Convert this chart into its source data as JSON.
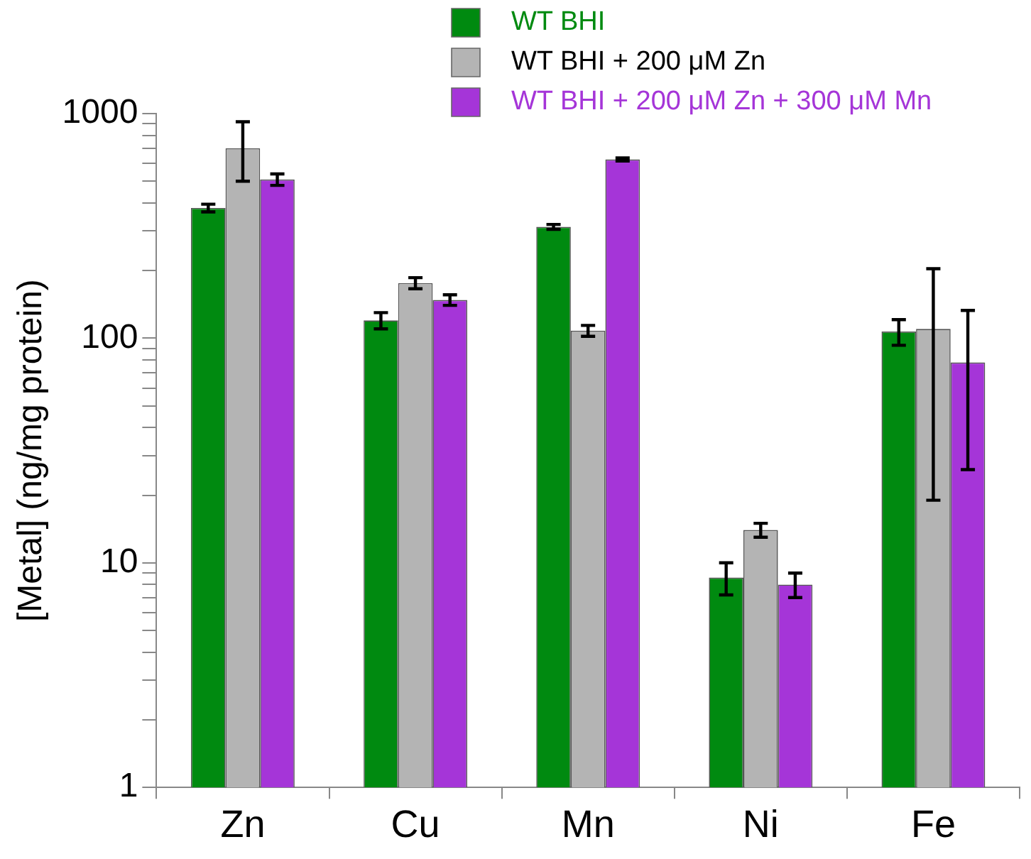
{
  "chart_data": {
    "type": "bar",
    "ylabel": "[Metal] (ng/mg protein)",
    "categories": [
      "Zn",
      "Cu",
      "Mn",
      "Ni",
      "Fe"
    ],
    "series": [
      {
        "name": "WT BHI",
        "color": "#008a10",
        "values": [
          380,
          120,
          313,
          8.6,
          107
        ],
        "errors": [
          15,
          10,
          8,
          1.4,
          14
        ]
      },
      {
        "name": "WT BHI + 200 μM Zn",
        "color": "#b4b4b4",
        "values": [
          700,
          176,
          108,
          14,
          110
        ],
        "errors": [
          [
            500,
            920
          ],
          10,
          6,
          1,
          [
            19,
            204
          ]
        ]
      },
      {
        "name": "WT BHI + 200 μM Zn + 300 μM Mn",
        "color": "#a535d8",
        "values": [
          509,
          148,
          625,
          8,
          78
        ],
        "errors": [
          30,
          8,
          10,
          1,
          [
            26,
            133
          ]
        ]
      }
    ],
    "log": true,
    "ylim": [
      1,
      1000
    ],
    "yticks": [
      1,
      {
        "value": 2,
        "label": null
      },
      {
        "value": 3,
        "label": null
      },
      {
        "value": 4,
        "label": null
      },
      {
        "value": 5,
        "label": null
      },
      {
        "value": 6,
        "label": null
      },
      {
        "value": 7,
        "label": null
      },
      {
        "value": 8,
        "label": null
      },
      {
        "value": 9,
        "label": null
      },
      10,
      {
        "value": 20,
        "label": null
      },
      {
        "value": 30,
        "label": null
      },
      {
        "value": 40,
        "label": null
      },
      {
        "value": 50,
        "label": null
      },
      {
        "value": 60,
        "label": null
      },
      {
        "value": 70,
        "label": null
      },
      {
        "value": 80,
        "label": null
      },
      {
        "value": 90,
        "label": null
      },
      100,
      {
        "value": 200,
        "label": null
      },
      {
        "value": 300,
        "label": null
      },
      {
        "value": 400,
        "label": null
      },
      {
        "value": 500,
        "label": null
      },
      {
        "value": 600,
        "label": null
      },
      {
        "value": 700,
        "label": null
      },
      {
        "value": 800,
        "label": null
      },
      {
        "value": 900,
        "label": null
      },
      1000
    ],
    "grid": false,
    "legend": "top"
  }
}
